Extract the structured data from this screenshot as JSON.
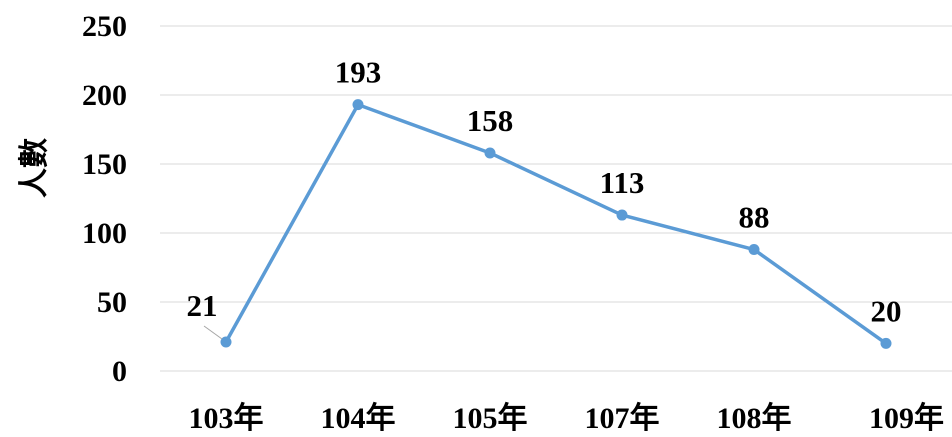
{
  "chart_data": {
    "type": "line",
    "title": "",
    "xlabel": "",
    "ylabel": "人數",
    "categories": [
      "103年",
      "104年",
      "105年",
      "107年",
      "108年",
      "109年"
    ],
    "series": [
      {
        "values": [
          21,
          193,
          158,
          113,
          88,
          20
        ],
        "color": "#5b9bd5"
      }
    ],
    "ylim": [
      0,
      250
    ],
    "yticks": [
      0,
      50,
      100,
      150,
      200,
      250
    ],
    "grid": true,
    "legend": "none",
    "data_labels": true
  }
}
